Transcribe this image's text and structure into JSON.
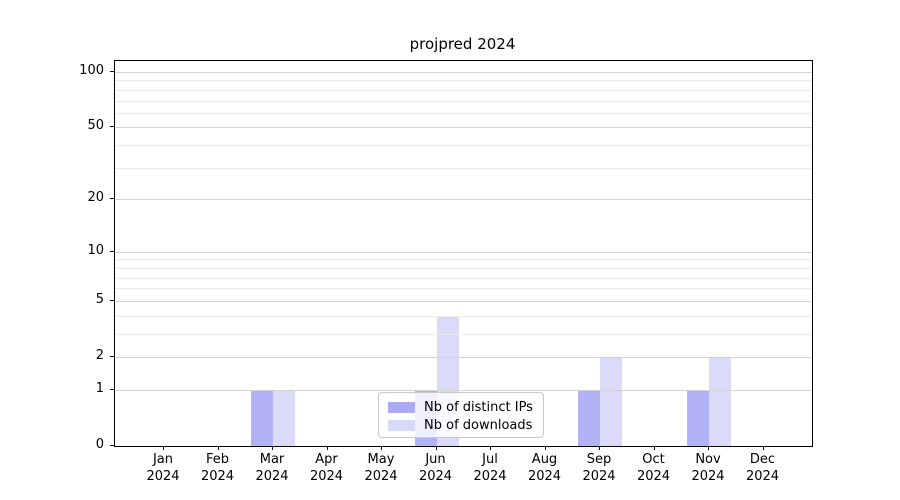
{
  "figure": {
    "title": "projpred 2024"
  },
  "chart_data": {
    "type": "bar",
    "title": "projpred 2024",
    "categories": [
      "Jan",
      "Feb",
      "Mar",
      "Apr",
      "May",
      "Jun",
      "Jul",
      "Aug",
      "Sep",
      "Oct",
      "Nov",
      "Dec"
    ],
    "category_year": "2024",
    "series": [
      {
        "name": "Nb of distinct IPs",
        "color": "#ababf5",
        "values": [
          0,
          0,
          1,
          0,
          0,
          1,
          0,
          0,
          1,
          0,
          1,
          0
        ]
      },
      {
        "name": "Nb of downloads",
        "color": "#d8d8f8",
        "values": [
          0,
          0,
          1,
          0,
          0,
          4,
          0,
          0,
          2,
          0,
          2,
          0
        ]
      }
    ],
    "xlabel": "",
    "ylabel": "",
    "yscale": "log10(1+x)",
    "ylim": [
      0,
      100
    ],
    "yticks": [
      0,
      1,
      2,
      5,
      10,
      20,
      50,
      100
    ],
    "minor_gridlines": [
      3,
      4,
      6,
      7,
      8,
      9,
      30,
      40,
      60,
      70,
      80,
      90
    ],
    "grid": true,
    "legend_position": "lower center inside plot"
  },
  "colors": {
    "major_grid": "#d3d3d3",
    "minor_grid": "#ebebeb",
    "spine": "#000000",
    "legend_border": "#c8c8c8",
    "background": "#ffffff"
  }
}
